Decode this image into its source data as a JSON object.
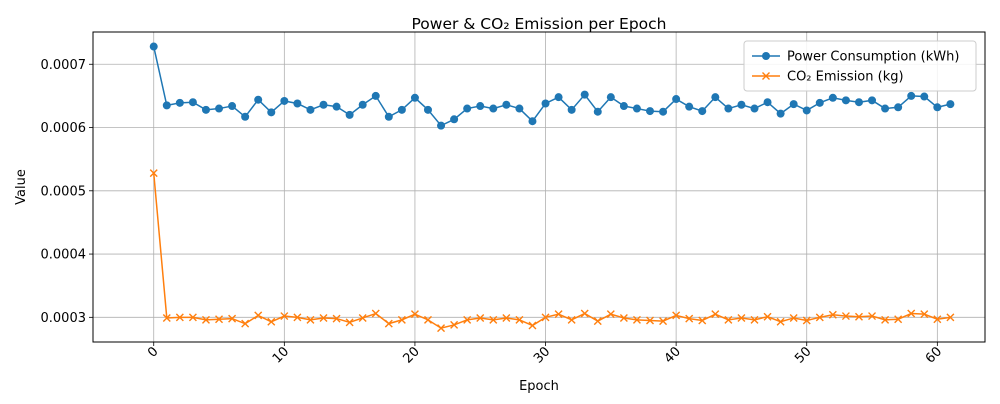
{
  "chart_data": {
    "type": "line",
    "title": "Power & CO₂ Emission per Epoch",
    "xlabel": "Epoch",
    "ylabel": "Value",
    "xlim": [
      -4.65,
      63.65
    ],
    "ylim": [
      0.000261,
      0.000751
    ],
    "x_ticks": [
      0,
      10,
      20,
      30,
      40,
      50,
      60
    ],
    "x_tick_labels": [
      "0",
      "10",
      "20",
      "30",
      "40",
      "50",
      "60"
    ],
    "y_ticks": [
      0.0003,
      0.0004,
      0.0005,
      0.0006,
      0.0007
    ],
    "y_tick_labels": [
      "0.0003",
      "0.0004",
      "0.0005",
      "0.0006",
      "0.0007"
    ],
    "grid": true,
    "legend_position": "top-right",
    "x": [
      0,
      1,
      2,
      3,
      4,
      5,
      6,
      7,
      8,
      9,
      10,
      11,
      12,
      13,
      14,
      15,
      16,
      17,
      18,
      19,
      20,
      21,
      22,
      23,
      24,
      25,
      26,
      27,
      28,
      29,
      30,
      31,
      32,
      33,
      34,
      35,
      36,
      37,
      38,
      39,
      40,
      41,
      42,
      43,
      44,
      45,
      46,
      47,
      48,
      49,
      50,
      51,
      52,
      53,
      54,
      55,
      56,
      57,
      58,
      59,
      60,
      61
    ],
    "series": [
      {
        "name": "Power Consumption (kWh)",
        "color": "#1f77b4",
        "marker": "circle",
        "values": [
          0.000728,
          0.000635,
          0.000639,
          0.00064,
          0.000628,
          0.00063,
          0.000634,
          0.000617,
          0.000644,
          0.000624,
          0.000642,
          0.000638,
          0.000628,
          0.000636,
          0.000633,
          0.00062,
          0.000636,
          0.00065,
          0.000617,
          0.000628,
          0.000647,
          0.000628,
          0.000603,
          0.000613,
          0.00063,
          0.000634,
          0.00063,
          0.000636,
          0.00063,
          0.00061,
          0.000638,
          0.000648,
          0.000628,
          0.000652,
          0.000625,
          0.000648,
          0.000634,
          0.00063,
          0.000626,
          0.000625,
          0.000645,
          0.000633,
          0.000626,
          0.000648,
          0.00063,
          0.000636,
          0.00063,
          0.00064,
          0.000622,
          0.000637,
          0.000627,
          0.000639,
          0.000647,
          0.000643,
          0.00064,
          0.000643,
          0.00063,
          0.000632,
          0.00065,
          0.000649,
          0.000632,
          0.000637
        ]
      },
      {
        "name": "CO₂ Emission (kg)",
        "color": "#ff7f0e",
        "marker": "x",
        "values": [
          0.000528,
          0.000299,
          0.0003,
          0.0003,
          0.000296,
          0.000297,
          0.000298,
          0.00029,
          0.000303,
          0.000293,
          0.000302,
          0.0003,
          0.000296,
          0.000299,
          0.000298,
          0.000292,
          0.000299,
          0.000306,
          0.00029,
          0.000296,
          0.000305,
          0.000296,
          0.000283,
          0.000288,
          0.000296,
          0.000299,
          0.000296,
          0.000299,
          0.000296,
          0.000287,
          0.0003,
          0.000305,
          0.000296,
          0.000306,
          0.000294,
          0.000305,
          0.000299,
          0.000296,
          0.000295,
          0.000294,
          0.000303,
          0.000298,
          0.000295,
          0.000305,
          0.000296,
          0.000299,
          0.000296,
          0.000301,
          0.000293,
          0.000299,
          0.000295,
          0.0003,
          0.000304,
          0.000302,
          0.000301,
          0.000302,
          0.000296,
          0.000297,
          0.000306,
          0.000305,
          0.000297,
          0.0003
        ]
      }
    ]
  }
}
